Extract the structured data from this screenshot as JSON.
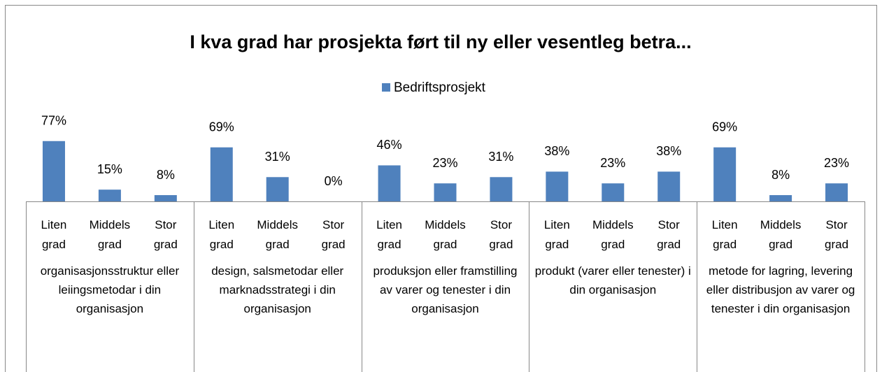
{
  "chart_data": {
    "type": "bar",
    "title": "I kva grad har prosjekta ført til ny eller vesentleg betra...",
    "categories": [
      "Liten grad",
      "Middels grad",
      "Stor grad",
      "Liten grad",
      "Middels grad",
      "Stor grad",
      "Liten grad",
      "Middels grad",
      "Stor grad",
      "Liten grad",
      "Middels grad",
      "Stor grad",
      "Liten grad",
      "Middels grad",
      "Stor grad"
    ],
    "category_groups": [
      "organisasjonsstruktur eller leiingsmetodar i din organisasjon",
      "design, salsmetodar eller marknadsstrategi i din organisasjon",
      "produksjon eller framstilling av varer og tenester i din organisasjon",
      "produkt (varer eller tenester) i din organisasjon",
      "metode for lagring, levering eller distribusjon av varer og tenester i din organisasjon"
    ],
    "series": [
      {
        "name": "Bedriftsprosjekt",
        "color": "#4f81bd",
        "values": [
          77,
          15,
          8,
          69,
          31,
          0,
          46,
          23,
          31,
          38,
          23,
          38,
          69,
          8,
          23
        ],
        "value_labels": [
          "77%",
          "15%",
          "8%",
          "69%",
          "31%",
          "0%",
          "46%",
          "23%",
          "31%",
          "38%",
          "23%",
          "38%",
          "69%",
          "8%",
          "23%"
        ]
      }
    ],
    "ylim": [
      0,
      100
    ],
    "legend": "top"
  }
}
